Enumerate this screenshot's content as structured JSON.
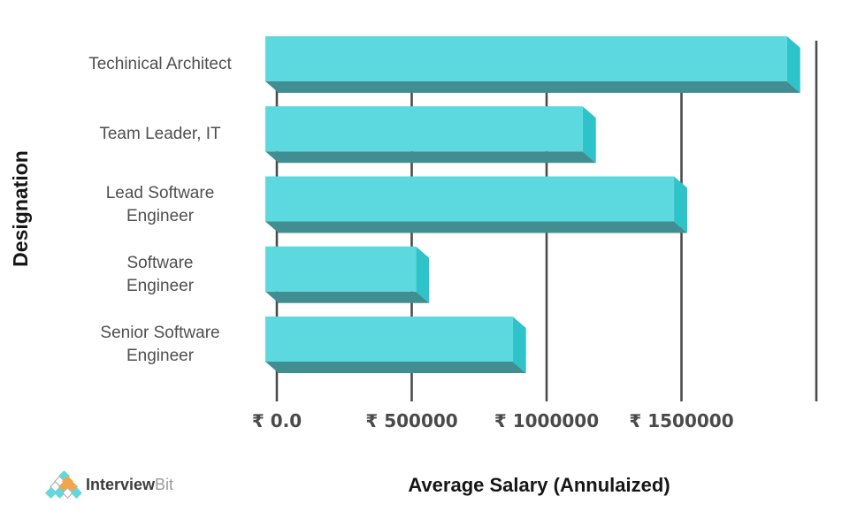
{
  "chart_data": {
    "type": "bar",
    "orientation": "horizontal",
    "bar_style": "3d-extruded",
    "xlabel": "Average Salary (Annulaized)",
    "ylabel": "Designation",
    "categories": [
      "Techinical Architect",
      "Team Leader, IT",
      "Lead Software\nEngineer",
      "Software\nEngineer",
      "Senior Software\nEngineer"
    ],
    "values": [
      1940000,
      1180000,
      1520000,
      560000,
      920000
    ],
    "currency_prefix": "₹",
    "xlim": [
      0,
      2000000
    ],
    "x_ticks": [
      {
        "value": 0,
        "label": "₹ 0.0"
      },
      {
        "value": 500000,
        "label": "₹ 500000"
      },
      {
        "value": 1000000,
        "label": "₹ 1000000"
      },
      {
        "value": 1500000,
        "label": "₹ 1500000"
      },
      {
        "value": 2000000,
        "label": ""
      }
    ],
    "grid": "vertical",
    "legend": "none",
    "colors": {
      "bar_face": "#5BD9DE",
      "bar_side": "#2EC3C9",
      "bar_bottom": "#418E92",
      "gridline": "#4C4C4C",
      "tick_text": "#4A4A4A",
      "category_text": "#4F4F4F",
      "axis_title_text": "#161616"
    }
  },
  "branding": {
    "logo_text_primary": "Interview",
    "logo_text_secondary": "Bit",
    "logo_colors": {
      "cyan": "#62D8DC",
      "orange": "#F0A64B",
      "white": "#FFFFFF",
      "outline": "#A5A5A5"
    },
    "logo_pyramid_rows": [
      [
        "cyan"
      ],
      [
        "white",
        "orange"
      ],
      [
        "white",
        "orange",
        "orange"
      ],
      [
        "cyan",
        "cyan",
        "white",
        "cyan"
      ]
    ]
  }
}
